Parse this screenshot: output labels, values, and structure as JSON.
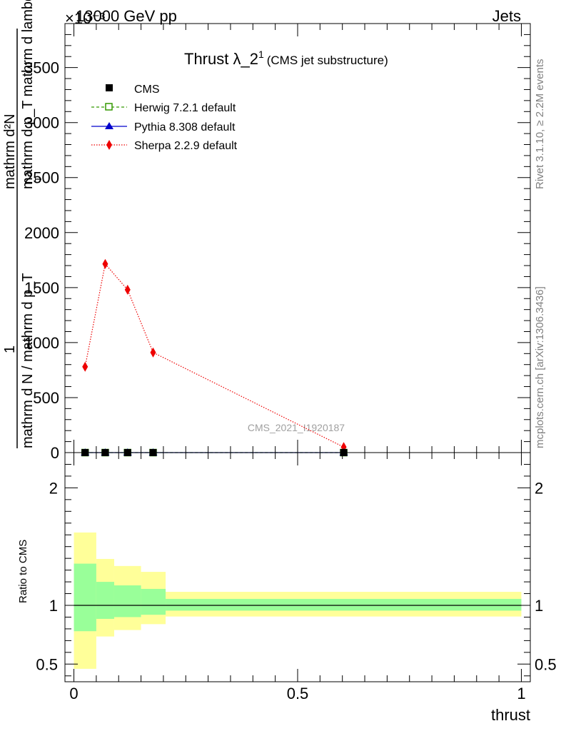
{
  "header": {
    "process": "13000 GeV pp",
    "category": "Jets",
    "exponent": "×10⁻³"
  },
  "side_labels": {
    "rivet": "Rivet 3.1.10, ≥ 2.2M events",
    "mcplots": "mcplots.cern.ch [arXiv:1306.3436]"
  },
  "watermark": "CMS_2021_I1920187",
  "chart_data": [
    {
      "type": "line",
      "title": "Thrust λ_2¹",
      "title_main": "Thrust λ_2",
      "title_sup": "1",
      "subtitle": "(CMS jet substructure)",
      "ylabel_numerator": "mathrm d²N",
      "ylabel_line2": "mathrm d p_T mathrm d lambda",
      "ylabel_denominator": "mathrm d N / mathrm d p_T",
      "ylabel_prefix": "1",
      "ylabel_sub": "T",
      "ylim": [
        0,
        3900
      ],
      "xlim": [
        -0.02,
        1.02
      ],
      "y_ticks": [
        0,
        500,
        1000,
        1500,
        2000,
        2500,
        3000,
        3500
      ],
      "y_tick_labels": [
        "0",
        "500",
        "1000",
        "1500",
        "2000",
        "2500",
        "3000",
        "3500"
      ],
      "legend": [
        "CMS",
        "Herwig 7.2.1 default",
        "Pythia 8.308 default",
        "Sherpa 2.2.9 default"
      ],
      "legend_position": "top-left",
      "series": [
        {
          "name": "CMS",
          "color": "#000000",
          "marker": "square",
          "x": [
            0.025,
            0.07,
            0.12,
            0.177,
            0.603
          ],
          "y": [
            0,
            0,
            0,
            0,
            0
          ]
        },
        {
          "name": "Herwig 7.2.1 default",
          "color": "#339900",
          "marker": "open-square",
          "line": "dashed",
          "x": [
            0.025,
            0.07,
            0.12,
            0.177,
            0.603
          ],
          "y": [
            0,
            0,
            0,
            0,
            0
          ]
        },
        {
          "name": "Pythia 8.308 default",
          "color": "#0000cc",
          "marker": "triangle",
          "line": "solid",
          "x": [
            0.025,
            0.07,
            0.12,
            0.177,
            0.603
          ],
          "y": [
            0,
            0,
            0,
            0,
            0
          ]
        },
        {
          "name": "Sherpa 2.2.9 default",
          "color": "#ee0000",
          "marker": "diamond",
          "line": "dotted",
          "x": [
            0.025,
            0.07,
            0.12,
            0.177,
            0.603
          ],
          "y": [
            780,
            1715,
            1480,
            910,
            50
          ]
        }
      ]
    },
    {
      "type": "area",
      "ylabel": "Ratio to CMS",
      "xlabel": "thrust",
      "xlim": [
        -0.02,
        1.02
      ],
      "ylim": [
        0.35,
        2.3
      ],
      "x_ticks": [
        0,
        0.5,
        1
      ],
      "x_tick_labels": [
        "0",
        "0.5",
        "1"
      ],
      "y_ticks": [
        0.5,
        1,
        2
      ],
      "y_tick_labels": [
        "0.5",
        "1",
        "2"
      ],
      "bands": [
        {
          "name": "yellow",
          "color": "#ffff99",
          "bins": [
            {
              "x0": 0.0,
              "x1": 0.05,
              "lo": 0.46,
              "hi": 1.62
            },
            {
              "x0": 0.05,
              "x1": 0.09,
              "lo": 0.735,
              "hi": 1.395
            },
            {
              "x0": 0.09,
              "x1": 0.15,
              "lo": 0.79,
              "hi": 1.335
            },
            {
              "x0": 0.15,
              "x1": 0.205,
              "lo": 0.84,
              "hi": 1.285
            },
            {
              "x0": 0.205,
              "x1": 1.0,
              "lo": 0.905,
              "hi": 1.115
            }
          ]
        },
        {
          "name": "green",
          "color": "#99ff99",
          "bins": [
            {
              "x0": 0.0,
              "x1": 0.05,
              "lo": 0.78,
              "hi": 1.355
            },
            {
              "x0": 0.05,
              "x1": 0.09,
              "lo": 0.885,
              "hi": 1.2
            },
            {
              "x0": 0.09,
              "x1": 0.15,
              "lo": 0.9,
              "hi": 1.17
            },
            {
              "x0": 0.15,
              "x1": 0.205,
              "lo": 0.92,
              "hi": 1.14
            },
            {
              "x0": 0.205,
              "x1": 1.0,
              "lo": 0.955,
              "hi": 1.055
            }
          ]
        }
      ],
      "reference_line": 1
    }
  ]
}
